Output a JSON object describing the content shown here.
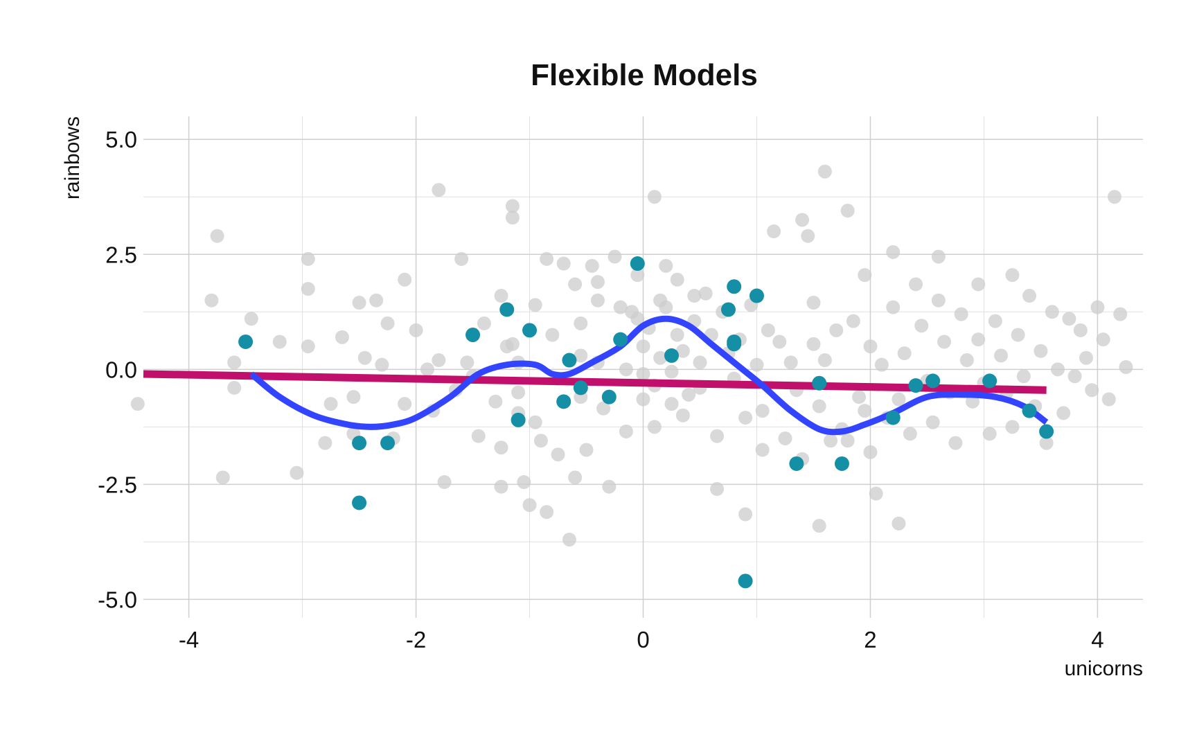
{
  "chart_data": {
    "type": "scatter",
    "title": "Flexible Models",
    "xlabel": "unicorns",
    "ylabel": "rainbows",
    "xlim": [
      -4.4,
      4.4
    ],
    "ylim": [
      -5.4,
      5.5
    ],
    "x_ticks": [
      -4,
      -2,
      0,
      2,
      4
    ],
    "x_tick_labels": [
      "-4",
      "-2",
      "0",
      "2",
      "4"
    ],
    "y_ticks": [
      5,
      2.5,
      0,
      -2.5,
      -5
    ],
    "y_tick_labels": [
      "5.0",
      "2.5",
      "0.0",
      "-2.5",
      "-5.0"
    ],
    "grid": true,
    "colors": {
      "background_points": "#cccccc",
      "highlight_points": "#148fa6",
      "linear_fit": "#c0106b",
      "smooth_fit": "#3344ff"
    },
    "series": [
      {
        "role": "background",
        "points": [
          [
            -4.45,
            -0.75
          ],
          [
            -3.75,
            2.9
          ],
          [
            -3.8,
            1.5
          ],
          [
            -3.7,
            -2.35
          ],
          [
            -3.6,
            0.15
          ],
          [
            -3.6,
            -0.4
          ],
          [
            -3.45,
            1.1
          ],
          [
            -3.5,
            0.6
          ],
          [
            -3.2,
            0.6
          ],
          [
            -3.05,
            -2.25
          ],
          [
            -2.95,
            2.4
          ],
          [
            -2.95,
            1.75
          ],
          [
            -2.95,
            0.5
          ],
          [
            -2.8,
            -1.6
          ],
          [
            -2.75,
            -0.75
          ],
          [
            -2.65,
            0.7
          ],
          [
            -2.55,
            -0.6
          ],
          [
            -2.55,
            -1.4
          ],
          [
            -2.5,
            1.45
          ],
          [
            -2.45,
            0.25
          ],
          [
            -2.35,
            1.5
          ],
          [
            -2.3,
            0.1
          ],
          [
            -2.25,
            1.0
          ],
          [
            -2.2,
            -1.5
          ],
          [
            -2.1,
            1.95
          ],
          [
            -2.1,
            -0.75
          ],
          [
            -2.0,
            0.85
          ],
          [
            -1.9,
            -0.0
          ],
          [
            -1.85,
            -0.9
          ],
          [
            -1.8,
            3.9
          ],
          [
            -1.8,
            0.2
          ],
          [
            -1.75,
            -2.45
          ],
          [
            -1.65,
            -0.45
          ],
          [
            -1.6,
            2.4
          ],
          [
            -1.55,
            0.15
          ],
          [
            -1.5,
            -0.15
          ],
          [
            -1.45,
            -1.45
          ],
          [
            -1.4,
            1.0
          ],
          [
            -1.3,
            -0.7
          ],
          [
            -1.25,
            -1.7
          ],
          [
            -1.25,
            -2.55
          ],
          [
            -1.2,
            0.5
          ],
          [
            -1.25,
            1.6
          ],
          [
            -1.15,
            3.55
          ],
          [
            -1.15,
            3.3
          ],
          [
            -1.15,
            0.55
          ],
          [
            -1.1,
            0.15
          ],
          [
            -1.1,
            -0.5
          ],
          [
            -1.1,
            -0.95
          ],
          [
            -1.05,
            -2.45
          ],
          [
            -1.0,
            -2.95
          ],
          [
            -0.95,
            1.4
          ],
          [
            -0.95,
            -1.15
          ],
          [
            -0.9,
            -1.55
          ],
          [
            -0.85,
            2.4
          ],
          [
            -0.85,
            -3.1
          ],
          [
            -0.8,
            0.75
          ],
          [
            -0.75,
            -0.2
          ],
          [
            -0.75,
            -1.85
          ],
          [
            -0.7,
            2.3
          ],
          [
            -0.65,
            -3.7
          ],
          [
            -0.6,
            1.85
          ],
          [
            -0.6,
            -2.35
          ],
          [
            -0.55,
            1.0
          ],
          [
            -0.55,
            0.3
          ],
          [
            -0.55,
            -0.6
          ],
          [
            -0.5,
            -1.75
          ],
          [
            -0.45,
            2.25
          ],
          [
            -0.4,
            1.9
          ],
          [
            -0.4,
            1.5
          ],
          [
            -0.4,
            0.15
          ],
          [
            -0.35,
            -0.85
          ],
          [
            -0.3,
            -2.55
          ],
          [
            -0.25,
            2.45
          ],
          [
            -0.2,
            1.35
          ],
          [
            -0.15,
            0.0
          ],
          [
            -0.15,
            -1.35
          ],
          [
            -0.1,
            1.25
          ],
          [
            -0.05,
            2.05
          ],
          [
            -0.05,
            1.1
          ],
          [
            0.0,
            0.5
          ],
          [
            0.0,
            -0.1
          ],
          [
            0.0,
            -0.65
          ],
          [
            0.05,
            0.9
          ],
          [
            0.1,
            3.75
          ],
          [
            0.1,
            -0.35
          ],
          [
            0.1,
            -1.25
          ],
          [
            0.15,
            1.5
          ],
          [
            0.15,
            0.25
          ],
          [
            0.2,
            2.25
          ],
          [
            0.2,
            1.35
          ],
          [
            0.25,
            -0.05
          ],
          [
            0.25,
            -0.75
          ],
          [
            0.3,
            1.95
          ],
          [
            0.3,
            0.75
          ],
          [
            0.35,
            0.4
          ],
          [
            0.35,
            -1.0
          ],
          [
            0.4,
            -0.55
          ],
          [
            0.45,
            1.6
          ],
          [
            0.45,
            1.05
          ],
          [
            0.5,
            0.15
          ],
          [
            0.5,
            -0.4
          ],
          [
            0.55,
            1.65
          ],
          [
            0.6,
            0.75
          ],
          [
            0.65,
            -1.45
          ],
          [
            0.65,
            -2.6
          ],
          [
            0.7,
            1.25
          ],
          [
            0.75,
            0.35
          ],
          [
            0.8,
            -0.2
          ],
          [
            0.85,
            0.65
          ],
          [
            0.9,
            -1.05
          ],
          [
            0.9,
            -3.15
          ],
          [
            0.95,
            1.4
          ],
          [
            1.0,
            0.1
          ],
          [
            1.05,
            -0.9
          ],
          [
            1.05,
            -1.75
          ],
          [
            1.1,
            0.85
          ],
          [
            1.15,
            3.0
          ],
          [
            1.2,
            0.6
          ],
          [
            1.25,
            -1.5
          ],
          [
            1.3,
            0.15
          ],
          [
            1.35,
            -0.45
          ],
          [
            1.4,
            3.25
          ],
          [
            1.4,
            -1.95
          ],
          [
            1.45,
            2.9
          ],
          [
            1.5,
            1.45
          ],
          [
            1.5,
            0.55
          ],
          [
            1.55,
            -0.8
          ],
          [
            1.55,
            -3.4
          ],
          [
            1.6,
            4.3
          ],
          [
            1.6,
            0.2
          ],
          [
            1.65,
            -1.55
          ],
          [
            1.7,
            0.85
          ],
          [
            1.75,
            -1.3
          ],
          [
            1.8,
            3.45
          ],
          [
            1.8,
            -1.55
          ],
          [
            1.85,
            1.05
          ],
          [
            1.9,
            -0.6
          ],
          [
            1.95,
            2.05
          ],
          [
            1.95,
            -0.9
          ],
          [
            2.0,
            0.5
          ],
          [
            2.0,
            -1.8
          ],
          [
            2.05,
            -2.7
          ],
          [
            2.1,
            0.1
          ],
          [
            2.15,
            -1.05
          ],
          [
            2.2,
            2.55
          ],
          [
            2.2,
            1.35
          ],
          [
            2.25,
            -0.65
          ],
          [
            2.25,
            -3.35
          ],
          [
            2.3,
            0.35
          ],
          [
            2.35,
            -1.4
          ],
          [
            2.4,
            1.85
          ],
          [
            2.45,
            0.95
          ],
          [
            2.5,
            -0.25
          ],
          [
            2.55,
            -1.15
          ],
          [
            2.6,
            2.45
          ],
          [
            2.6,
            1.5
          ],
          [
            2.65,
            0.6
          ],
          [
            2.7,
            -0.5
          ],
          [
            2.75,
            -1.6
          ],
          [
            2.8,
            1.2
          ],
          [
            2.85,
            0.2
          ],
          [
            2.9,
            -0.7
          ],
          [
            2.95,
            1.85
          ],
          [
            2.95,
            0.65
          ],
          [
            3.0,
            -0.3
          ],
          [
            3.05,
            -1.4
          ],
          [
            3.1,
            1.05
          ],
          [
            3.15,
            0.3
          ],
          [
            3.2,
            -0.5
          ],
          [
            3.25,
            2.05
          ],
          [
            3.25,
            -1.25
          ],
          [
            3.3,
            0.75
          ],
          [
            3.35,
            -0.15
          ],
          [
            3.4,
            1.6
          ],
          [
            3.45,
            -0.8
          ],
          [
            3.5,
            0.4
          ],
          [
            3.55,
            -1.6
          ],
          [
            3.6,
            1.25
          ],
          [
            3.65,
            0.0
          ],
          [
            3.7,
            -0.95
          ],
          [
            3.75,
            1.1
          ],
          [
            3.8,
            -0.15
          ],
          [
            3.85,
            0.85
          ],
          [
            3.9,
            0.25
          ],
          [
            3.95,
            -0.45
          ],
          [
            4.0,
            1.35
          ],
          [
            4.05,
            0.65
          ],
          [
            4.1,
            -0.65
          ],
          [
            4.15,
            3.75
          ],
          [
            4.2,
            1.2
          ],
          [
            4.25,
            0.05
          ]
        ]
      },
      {
        "role": "highlight",
        "points": [
          [
            -3.5,
            0.6
          ],
          [
            -2.5,
            -1.6
          ],
          [
            -2.25,
            -1.6
          ],
          [
            -2.5,
            -2.9
          ],
          [
            -1.5,
            0.75
          ],
          [
            -1.2,
            1.3
          ],
          [
            -1.1,
            -1.1
          ],
          [
            -1.0,
            0.85
          ],
          [
            -0.7,
            -0.7
          ],
          [
            -0.65,
            0.2
          ],
          [
            -0.55,
            -0.4
          ],
          [
            -0.3,
            -0.6
          ],
          [
            -0.2,
            0.65
          ],
          [
            -0.05,
            2.3
          ],
          [
            0.25,
            0.3
          ],
          [
            0.75,
            1.3
          ],
          [
            0.8,
            1.8
          ],
          [
            0.8,
            0.55
          ],
          [
            0.8,
            0.6
          ],
          [
            1.0,
            1.6
          ],
          [
            0.9,
            -4.6
          ],
          [
            1.35,
            -2.05
          ],
          [
            1.55,
            -0.3
          ],
          [
            1.75,
            -2.05
          ],
          [
            2.2,
            -1.05
          ],
          [
            2.4,
            -0.35
          ],
          [
            2.55,
            -0.25
          ],
          [
            3.05,
            -0.25
          ],
          [
            3.4,
            -0.9
          ],
          [
            3.55,
            -1.35
          ]
        ]
      },
      {
        "role": "linear_fit",
        "type": "line",
        "x": [
          -4.4,
          3.55
        ],
        "y": [
          -0.1,
          -0.45
        ]
      },
      {
        "role": "smooth_fit",
        "type": "line",
        "x": [
          -3.45,
          -3.2,
          -2.9,
          -2.6,
          -2.4,
          -2.2,
          -2.0,
          -1.7,
          -1.45,
          -1.2,
          -0.95,
          -0.8,
          -0.65,
          -0.45,
          -0.2,
          0.0,
          0.2,
          0.4,
          0.6,
          0.85,
          1.05,
          1.3,
          1.55,
          1.75,
          1.95,
          2.2,
          2.5,
          2.8,
          3.1,
          3.35,
          3.55
        ],
        "y": [
          -0.1,
          -0.6,
          -1.0,
          -1.2,
          -1.25,
          -1.2,
          -1.05,
          -0.6,
          -0.1,
          0.1,
          0.1,
          -0.1,
          -0.1,
          0.15,
          0.5,
          0.95,
          1.1,
          0.95,
          0.55,
          0.05,
          -0.35,
          -0.9,
          -1.3,
          -1.35,
          -1.2,
          -0.95,
          -0.6,
          -0.55,
          -0.6,
          -0.8,
          -1.15
        ]
      }
    ]
  }
}
